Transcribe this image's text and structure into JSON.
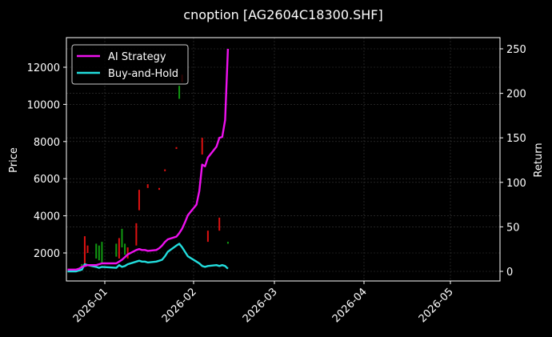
{
  "chart_data": {
    "type": "line",
    "title": "cnoption [AG2604C18300.SHF]",
    "xlabel": "",
    "ylabel": "Price",
    "ylabel_right": "Return",
    "ylim": [
      500,
      13400
    ],
    "ylim_right": [
      -10,
      256
    ],
    "grid": true,
    "legend_position": "upper left",
    "x_ticks": [
      "2026-01",
      "2026-02",
      "2026-03",
      "2026-04",
      "2026-05"
    ],
    "y_ticks_left": [
      2000,
      4000,
      6000,
      8000,
      10000,
      12000
    ],
    "y_ticks_right": [
      0,
      50,
      100,
      150,
      200,
      250
    ],
    "colors": {
      "background": "#000000",
      "ai_strategy": "#ee11ee",
      "buy_and_hold": "#22dddd",
      "candle_up": "#dd1111",
      "candle_down": "#119911",
      "grid": "#3a3a3a",
      "axes": "#ffffff"
    },
    "series": [
      {
        "name": "AI Strategy",
        "axis": "right",
        "x": [
          "2025-12-19",
          "2025-12-22",
          "2025-12-23",
          "2025-12-24",
          "2025-12-25",
          "2025-12-26",
          "2025-12-29",
          "2025-12-30",
          "2025-12-31",
          "2026-01-05",
          "2026-01-06",
          "2026-01-07",
          "2026-01-08",
          "2026-01-09",
          "2026-01-12",
          "2026-01-13",
          "2026-01-14",
          "2026-01-15",
          "2026-01-16",
          "2026-01-19",
          "2026-01-20",
          "2026-01-21",
          "2026-01-22",
          "2026-01-23",
          "2026-01-26",
          "2026-01-27",
          "2026-01-28",
          "2026-01-29",
          "2026-01-30",
          "2026-02-02",
          "2026-02-03",
          "2026-02-04",
          "2026-02-05",
          "2026-02-06",
          "2026-02-09",
          "2026-02-10",
          "2026-02-11",
          "2026-02-12",
          "2026-02-13"
        ],
        "values": [
          2,
          2,
          3,
          5,
          6,
          7,
          7,
          8,
          9,
          9,
          11,
          13,
          16,
          19,
          24,
          25,
          24,
          24,
          23,
          24,
          26,
          29,
          33,
          36,
          39,
          43,
          48,
          55,
          63,
          75,
          90,
          120,
          118,
          128,
          140,
          150,
          151,
          170,
          250
        ]
      },
      {
        "name": "Buy-and-Hold",
        "axis": "right",
        "x": [
          "2025-12-19",
          "2025-12-22",
          "2025-12-23",
          "2025-12-24",
          "2025-12-25",
          "2025-12-26",
          "2025-12-29",
          "2025-12-30",
          "2025-12-31",
          "2026-01-05",
          "2026-01-06",
          "2026-01-07",
          "2026-01-08",
          "2026-01-09",
          "2026-01-12",
          "2026-01-13",
          "2026-01-14",
          "2026-01-15",
          "2026-01-16",
          "2026-01-19",
          "2026-01-20",
          "2026-01-21",
          "2026-01-22",
          "2026-01-23",
          "2026-01-26",
          "2026-01-27",
          "2026-01-28",
          "2026-01-29",
          "2026-01-30",
          "2026-02-02",
          "2026-02-03",
          "2026-02-04",
          "2026-02-05",
          "2026-02-06",
          "2026-02-09",
          "2026-02-10",
          "2026-02-11",
          "2026-02-12",
          "2026-02-13"
        ],
        "values": [
          0,
          0,
          1,
          2,
          8,
          7,
          5,
          4,
          5,
          4,
          7,
          5,
          6,
          8,
          11,
          12,
          11,
          11,
          10,
          11,
          12,
          13,
          17,
          22,
          29,
          31,
          27,
          22,
          17,
          11,
          9,
          6,
          5,
          6,
          7,
          6,
          7,
          6,
          3
        ]
      }
    ],
    "candles": [
      {
        "date": "2025-12-24",
        "low": 1250,
        "high": 1400,
        "type": "down"
      },
      {
        "date": "2025-12-25",
        "low": 1300,
        "high": 2900,
        "type": "up"
      },
      {
        "date": "2025-12-26",
        "low": 2000,
        "high": 2400,
        "type": "up"
      },
      {
        "date": "2025-12-29",
        "low": 1700,
        "high": 2500,
        "type": "down"
      },
      {
        "date": "2025-12-30",
        "low": 1600,
        "high": 2400,
        "type": "down"
      },
      {
        "date": "2025-12-31",
        "low": 1400,
        "high": 2600,
        "type": "down"
      },
      {
        "date": "2026-01-05",
        "low": 1800,
        "high": 2500,
        "type": "down"
      },
      {
        "date": "2026-01-06",
        "low": 1700,
        "high": 2800,
        "type": "up"
      },
      {
        "date": "2026-01-07",
        "low": 2300,
        "high": 3300,
        "type": "down"
      },
      {
        "date": "2026-01-08",
        "low": 1900,
        "high": 2500,
        "type": "down"
      },
      {
        "date": "2026-01-09",
        "low": 1700,
        "high": 2300,
        "type": "up"
      },
      {
        "date": "2026-01-12",
        "low": 2400,
        "high": 3600,
        "type": "up"
      },
      {
        "date": "2026-01-13",
        "low": 4300,
        "high": 5400,
        "type": "up"
      },
      {
        "date": "2026-01-16",
        "low": 5500,
        "high": 5700,
        "type": "up"
      },
      {
        "date": "2026-01-20",
        "low": 5400,
        "high": 5500,
        "type": "up"
      },
      {
        "date": "2026-01-22",
        "low": 6400,
        "high": 6500,
        "type": "up"
      },
      {
        "date": "2026-01-26",
        "low": 7600,
        "high": 7700,
        "type": "up"
      },
      {
        "date": "2026-01-27",
        "low": 10300,
        "high": 11000,
        "type": "down"
      },
      {
        "date": "2026-01-28",
        "low": 11200,
        "high": 11600,
        "type": "up"
      },
      {
        "date": "2026-02-04",
        "low": 7300,
        "high": 8200,
        "type": "up"
      },
      {
        "date": "2026-02-06",
        "low": 2600,
        "high": 3200,
        "type": "up"
      },
      {
        "date": "2026-02-10",
        "low": 3200,
        "high": 3900,
        "type": "up"
      },
      {
        "date": "2026-02-13",
        "low": 2500,
        "high": 2600,
        "type": "down"
      }
    ]
  },
  "legend": {
    "items": [
      {
        "label": "AI Strategy",
        "color": "#ee11ee"
      },
      {
        "label": "Buy-and-Hold",
        "color": "#22dddd"
      }
    ]
  }
}
